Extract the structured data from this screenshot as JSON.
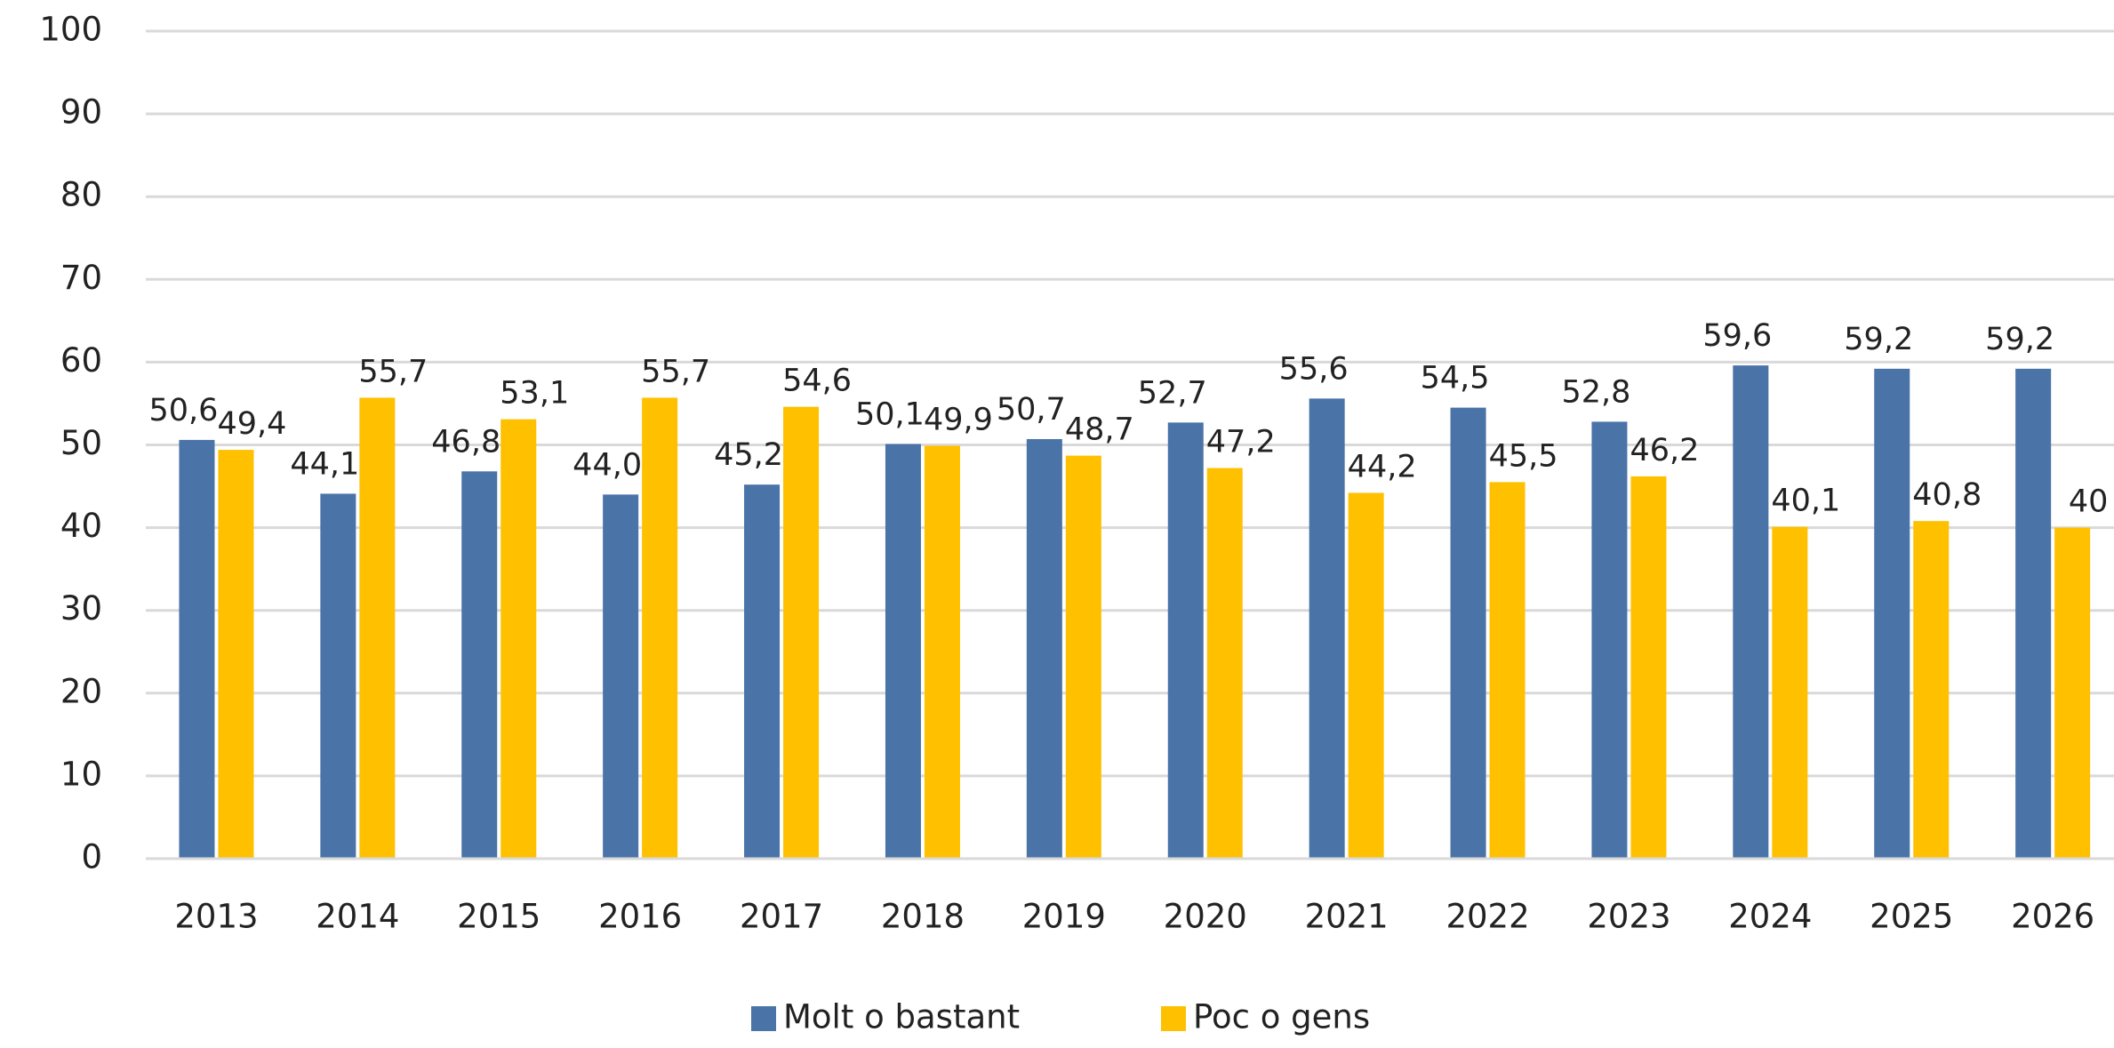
{
  "chart_data": {
    "type": "bar",
    "categories": [
      "2013",
      "2014",
      "2015",
      "2016",
      "2017",
      "2018",
      "2019",
      "2020",
      "2021",
      "2022",
      "2023",
      "2024",
      "2025",
      "2026"
    ],
    "series": [
      {
        "name": "Molt o bastant",
        "color": "#4a73a8",
        "values": [
          50.6,
          44.1,
          46.8,
          44.0,
          45.2,
          50.1,
          50.7,
          52.7,
          55.6,
          54.5,
          52.8,
          59.6,
          59.2,
          59.2
        ],
        "value_labels": [
          "50,6",
          "44,1",
          "46,8",
          "44,0",
          "45,2",
          "50,1",
          "50,7",
          "52,7",
          "55,6",
          "54,5",
          "52,8",
          "59,6",
          "59,2",
          "59,2"
        ]
      },
      {
        "name": "Poc o gens",
        "color": "#ffc000",
        "values": [
          49.4,
          55.7,
          53.1,
          55.7,
          54.6,
          49.9,
          48.7,
          47.2,
          44.2,
          45.5,
          46.2,
          40.1,
          40.8,
          40
        ],
        "value_labels": [
          "49,4",
          "55,7",
          "53,1",
          "55,7",
          "54,6",
          "49,9",
          "48,7",
          "47,2",
          "44,2",
          "45,5",
          "46,2",
          "40,1",
          "40,8",
          "40"
        ]
      }
    ],
    "ylim": [
      0,
      100
    ],
    "yticks": [
      0,
      10,
      20,
      30,
      40,
      50,
      60,
      70,
      80,
      90,
      100
    ],
    "grid": true,
    "legend": "bottom"
  }
}
